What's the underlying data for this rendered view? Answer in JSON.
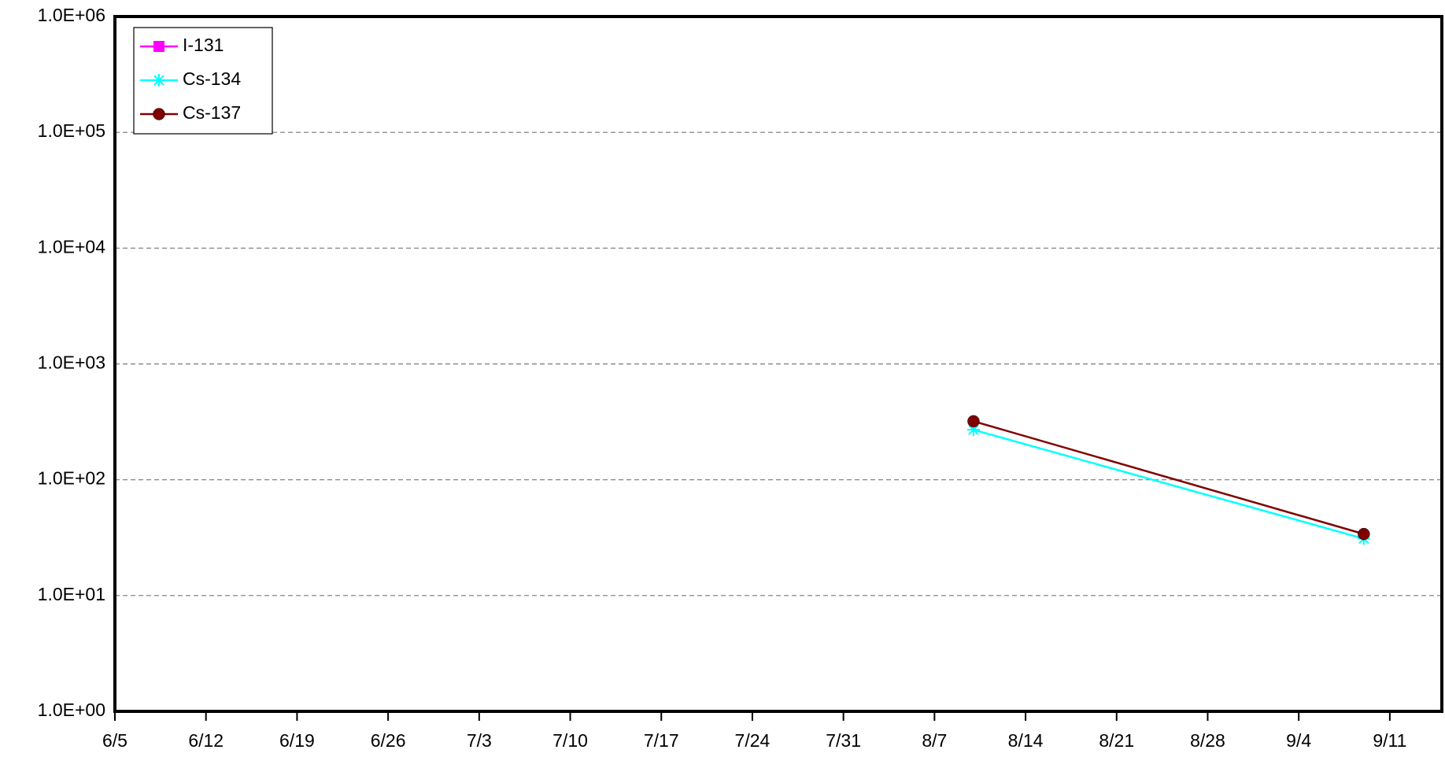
{
  "chart_data": {
    "type": "line",
    "x": [
      "8/10",
      "9/9"
    ],
    "series": [
      {
        "name": "I-131",
        "color": "#ff00ff",
        "marker": "square",
        "values": [
          null,
          null
        ]
      },
      {
        "name": "Cs-134",
        "color": "#00ffff",
        "marker": "asterisk",
        "values": [
          270,
          31
        ]
      },
      {
        "name": "Cs-137",
        "color": "#800000",
        "marker": "circle",
        "values": [
          320,
          34
        ]
      }
    ],
    "xlim": [
      "6/5",
      "9/15"
    ],
    "xticks": [
      "6/5",
      "6/12",
      "6/19",
      "6/26",
      "7/3",
      "7/10",
      "7/17",
      "7/24",
      "7/31",
      "8/7",
      "8/14",
      "8/21",
      "8/28",
      "9/4",
      "9/11"
    ],
    "ylim": [
      1,
      1000000
    ],
    "yticks": [
      {
        "value": 1,
        "label": "1.0E+00"
      },
      {
        "value": 10,
        "label": "1.0E+01"
      },
      {
        "value": 100,
        "label": "1.0E+02"
      },
      {
        "value": 1000,
        "label": "1.0E+03"
      },
      {
        "value": 10000,
        "label": "1.0E+04"
      },
      {
        "value": 100000,
        "label": "1.0E+05"
      },
      {
        "value": 1000000,
        "label": "1.0E+06"
      }
    ],
    "log_y": true,
    "grid": true,
    "legend": "upper left"
  }
}
